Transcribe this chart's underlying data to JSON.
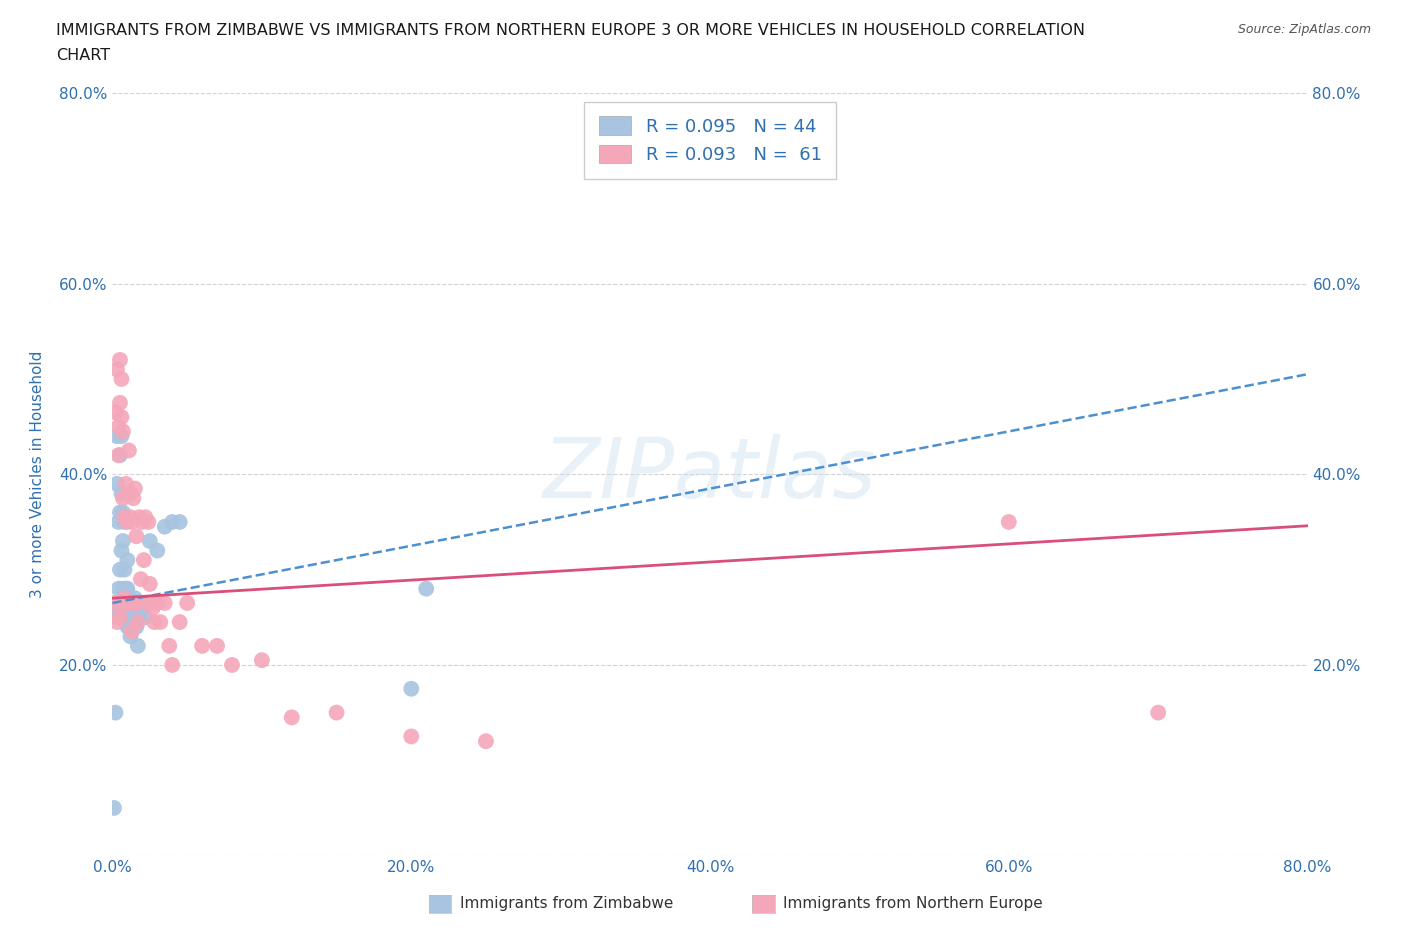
{
  "title_line1": "IMMIGRANTS FROM ZIMBABWE VS IMMIGRANTS FROM NORTHERN EUROPE 3 OR MORE VEHICLES IN HOUSEHOLD CORRELATION",
  "title_line2": "CHART",
  "source": "Source: ZipAtlas.com",
  "ylabel": "3 or more Vehicles in Household",
  "xlim": [
    0.0,
    0.8
  ],
  "ylim": [
    0.0,
    0.8
  ],
  "xticks": [
    0.0,
    0.2,
    0.4,
    0.6,
    0.8
  ],
  "yticks": [
    0.0,
    0.2,
    0.4,
    0.6,
    0.8
  ],
  "xticklabels": [
    "0.0%",
    "20.0%",
    "40.0%",
    "60.0%",
    "80.0%"
  ],
  "yticklabels": [
    "",
    "20.0%",
    "40.0%",
    "60.0%",
    "80.0%"
  ],
  "grid_color": "#c8c8c8",
  "background_color": "#ffffff",
  "watermark": "ZIPatlas",
  "series": [
    {
      "label": "Immigrants from Zimbabwe",
      "R": 0.095,
      "N": 44,
      "color": "#a8c4e0",
      "line_color": "#4d90d0",
      "line_style": "--",
      "x": [
        0.001,
        0.002,
        0.002,
        0.003,
        0.003,
        0.004,
        0.004,
        0.004,
        0.005,
        0.005,
        0.005,
        0.006,
        0.006,
        0.006,
        0.007,
        0.007,
        0.007,
        0.008,
        0.008,
        0.008,
        0.009,
        0.009,
        0.01,
        0.01,
        0.01,
        0.011,
        0.011,
        0.012,
        0.012,
        0.013,
        0.014,
        0.015,
        0.016,
        0.017,
        0.018,
        0.02,
        0.022,
        0.025,
        0.03,
        0.035,
        0.04,
        0.045,
        0.2,
        0.21
      ],
      "y": [
        0.05,
        0.15,
        0.26,
        0.44,
        0.39,
        0.28,
        0.35,
        0.25,
        0.42,
        0.36,
        0.3,
        0.44,
        0.38,
        0.32,
        0.36,
        0.33,
        0.28,
        0.35,
        0.3,
        0.26,
        0.28,
        0.25,
        0.31,
        0.28,
        0.24,
        0.27,
        0.24,
        0.26,
        0.23,
        0.25,
        0.24,
        0.27,
        0.24,
        0.22,
        0.25,
        0.26,
        0.25,
        0.33,
        0.32,
        0.345,
        0.35,
        0.35,
        0.175,
        0.28
      ]
    },
    {
      "label": "Immigrants from Northern Europe",
      "R": 0.093,
      "N": 61,
      "color": "#f4a7b9",
      "line_color": "#d94f7a",
      "line_style": "-",
      "x": [
        0.001,
        0.002,
        0.003,
        0.003,
        0.004,
        0.004,
        0.005,
        0.005,
        0.005,
        0.006,
        0.006,
        0.006,
        0.007,
        0.007,
        0.008,
        0.008,
        0.009,
        0.009,
        0.01,
        0.01,
        0.011,
        0.011,
        0.012,
        0.012,
        0.013,
        0.013,
        0.014,
        0.014,
        0.015,
        0.015,
        0.016,
        0.016,
        0.017,
        0.018,
        0.019,
        0.02,
        0.021,
        0.022,
        0.023,
        0.024,
        0.025,
        0.026,
        0.027,
        0.028,
        0.03,
        0.032,
        0.035,
        0.038,
        0.04,
        0.045,
        0.05,
        0.06,
        0.07,
        0.08,
        0.1,
        0.12,
        0.15,
        0.2,
        0.25,
        0.6,
        0.7
      ],
      "y": [
        0.265,
        0.465,
        0.245,
        0.51,
        0.45,
        0.42,
        0.52,
        0.475,
        0.25,
        0.5,
        0.46,
        0.265,
        0.445,
        0.375,
        0.355,
        0.27,
        0.39,
        0.265,
        0.35,
        0.265,
        0.425,
        0.265,
        0.38,
        0.355,
        0.35,
        0.235,
        0.375,
        0.265,
        0.385,
        0.265,
        0.335,
        0.265,
        0.245,
        0.355,
        0.29,
        0.35,
        0.31,
        0.355,
        0.265,
        0.35,
        0.285,
        0.265,
        0.26,
        0.245,
        0.265,
        0.245,
        0.265,
        0.22,
        0.2,
        0.245,
        0.265,
        0.22,
        0.22,
        0.2,
        0.205,
        0.145,
        0.15,
        0.125,
        0.12,
        0.35,
        0.15
      ]
    }
  ],
  "legend_color": "#3070b0",
  "axis_label_color": "#3070b0",
  "tick_label_color": "#3070b0",
  "regression_intercept_zim": 0.265,
  "regression_slope_zim": 0.3,
  "regression_intercept_ne": 0.27,
  "regression_slope_ne": 0.095
}
